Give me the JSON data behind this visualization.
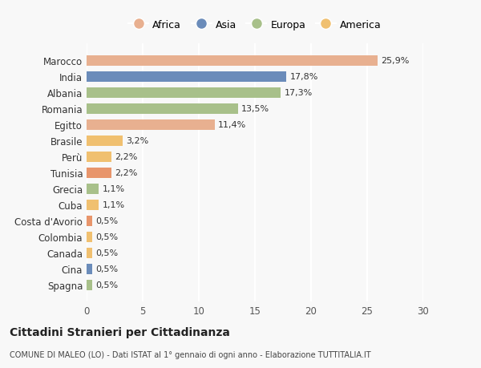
{
  "categories": [
    "Spagna",
    "Cina",
    "Canada",
    "Colombia",
    "Costa d'Avorio",
    "Cuba",
    "Grecia",
    "Tunisia",
    "Perù",
    "Brasile",
    "Egitto",
    "Romania",
    "Albania",
    "India",
    "Marocco"
  ],
  "values": [
    0.5,
    0.5,
    0.5,
    0.5,
    0.5,
    1.1,
    1.1,
    2.2,
    2.2,
    3.2,
    11.4,
    13.5,
    17.3,
    17.8,
    25.9
  ],
  "labels": [
    "0,5%",
    "0,5%",
    "0,5%",
    "0,5%",
    "0,5%",
    "1,1%",
    "1,1%",
    "2,2%",
    "2,2%",
    "3,2%",
    "11,4%",
    "13,5%",
    "17,3%",
    "17,8%",
    "25,9%"
  ],
  "colors": [
    "#a8c08a",
    "#6b8cba",
    "#f0c070",
    "#f0c070",
    "#e8956b",
    "#f0c070",
    "#a8c08a",
    "#e8956b",
    "#f0c070",
    "#f0c070",
    "#e8b090",
    "#a8c08a",
    "#a8c08a",
    "#6b8cba",
    "#e8b090"
  ],
  "continent_colors": {
    "Africa": "#e8b090",
    "Asia": "#6b8cba",
    "Europa": "#a8c08a",
    "America": "#f0c070"
  },
  "legend_order": [
    "Africa",
    "Asia",
    "Europa",
    "America"
  ],
  "title": "Cittadini Stranieri per Cittadinanza",
  "subtitle": "COMUNE DI MALEO (LO) - Dati ISTAT al 1° gennaio di ogni anno - Elaborazione TUTTITALIA.IT",
  "xlim": [
    0,
    30
  ],
  "xticks": [
    0,
    5,
    10,
    15,
    20,
    25,
    30
  ],
  "background_color": "#f8f8f8",
  "grid_color": "#ffffff",
  "bar_height": 0.65
}
